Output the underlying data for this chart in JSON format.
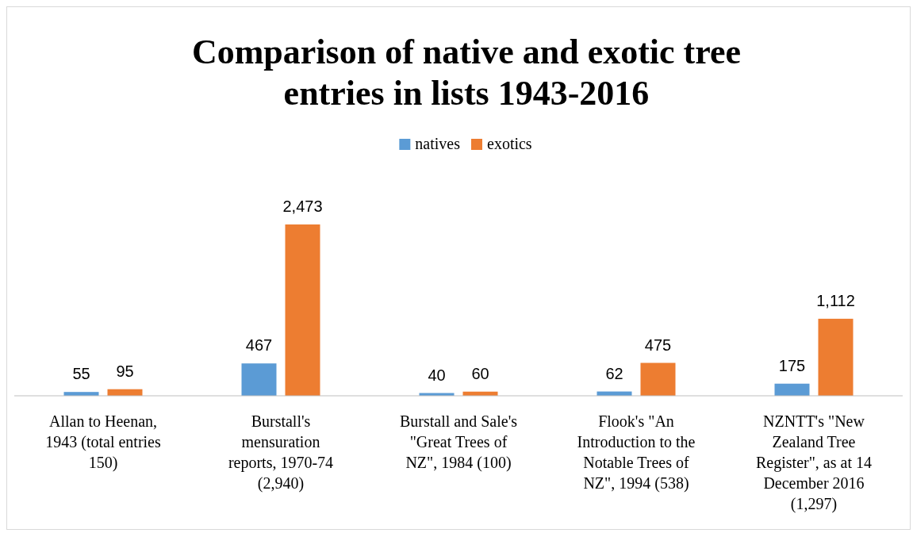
{
  "chart_data": {
    "type": "bar",
    "title": "Comparison of native and exotic tree entries in lists 1943-2016",
    "categories": [
      "Allan to Heenan, 1943 (total entries 150)",
      "Burstall's mensuration reports, 1970-74 (2,940)",
      "Burstall and Sale's \"Great Trees of NZ\", 1984 (100)",
      "Flook's \"An Introduction to the Notable Trees of NZ\", 1994 (538)",
      "NZNTT's \"New Zealand Tree Register\", as at 14 December 2016 (1,297)"
    ],
    "series": [
      {
        "name": "natives",
        "color": "#5b9bd5",
        "values": [
          55,
          467,
          40,
          62,
          175
        ],
        "value_labels": [
          "55",
          "467",
          "40",
          "62",
          "175"
        ]
      },
      {
        "name": "exotics",
        "color": "#ed7d31",
        "values": [
          95,
          2473,
          60,
          475,
          1112
        ],
        "value_labels": [
          "95",
          "2,473",
          "60",
          "475",
          "1,112"
        ]
      }
    ],
    "legend": "top"
  }
}
